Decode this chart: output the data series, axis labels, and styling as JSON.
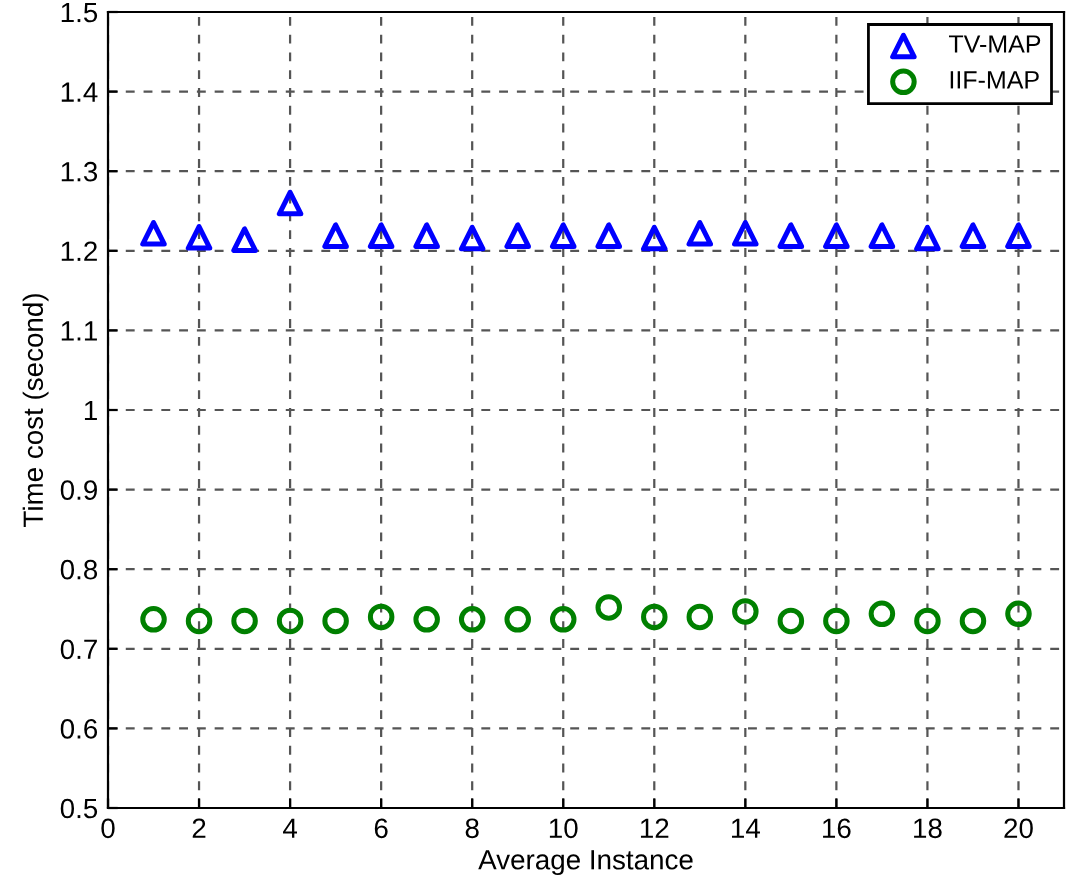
{
  "chart_data": {
    "type": "scatter",
    "xlabel": "Average Instance",
    "ylabel": "Time cost (second)",
    "x": [
      1,
      2,
      3,
      4,
      5,
      6,
      7,
      8,
      9,
      10,
      11,
      12,
      13,
      14,
      15,
      16,
      17,
      18,
      19,
      20
    ],
    "series": [
      {
        "name": "TV-MAP",
        "color": "#0000ff",
        "marker": "triangle",
        "values": [
          1.222,
          1.217,
          1.214,
          1.26,
          1.219,
          1.219,
          1.219,
          1.216,
          1.219,
          1.219,
          1.219,
          1.216,
          1.222,
          1.222,
          1.219,
          1.219,
          1.219,
          1.216,
          1.219,
          1.219
        ]
      },
      {
        "name": "IIF-MAP",
        "color": "#008000",
        "marker": "circle",
        "values": [
          0.737,
          0.735,
          0.735,
          0.735,
          0.735,
          0.74,
          0.737,
          0.737,
          0.737,
          0.737,
          0.752,
          0.74,
          0.74,
          0.747,
          0.735,
          0.735,
          0.744,
          0.735,
          0.735,
          0.744
        ]
      }
    ],
    "xlim": [
      0,
      21
    ],
    "xticks": [
      0,
      2,
      4,
      6,
      8,
      10,
      12,
      14,
      16,
      18,
      20
    ],
    "ylim": [
      0.5,
      1.5
    ],
    "yticks": [
      0.5,
      0.6,
      0.7,
      0.8,
      0.9,
      1,
      1.1,
      1.2,
      1.3,
      1.4,
      1.5
    ],
    "grid": true,
    "legend": "top right"
  }
}
